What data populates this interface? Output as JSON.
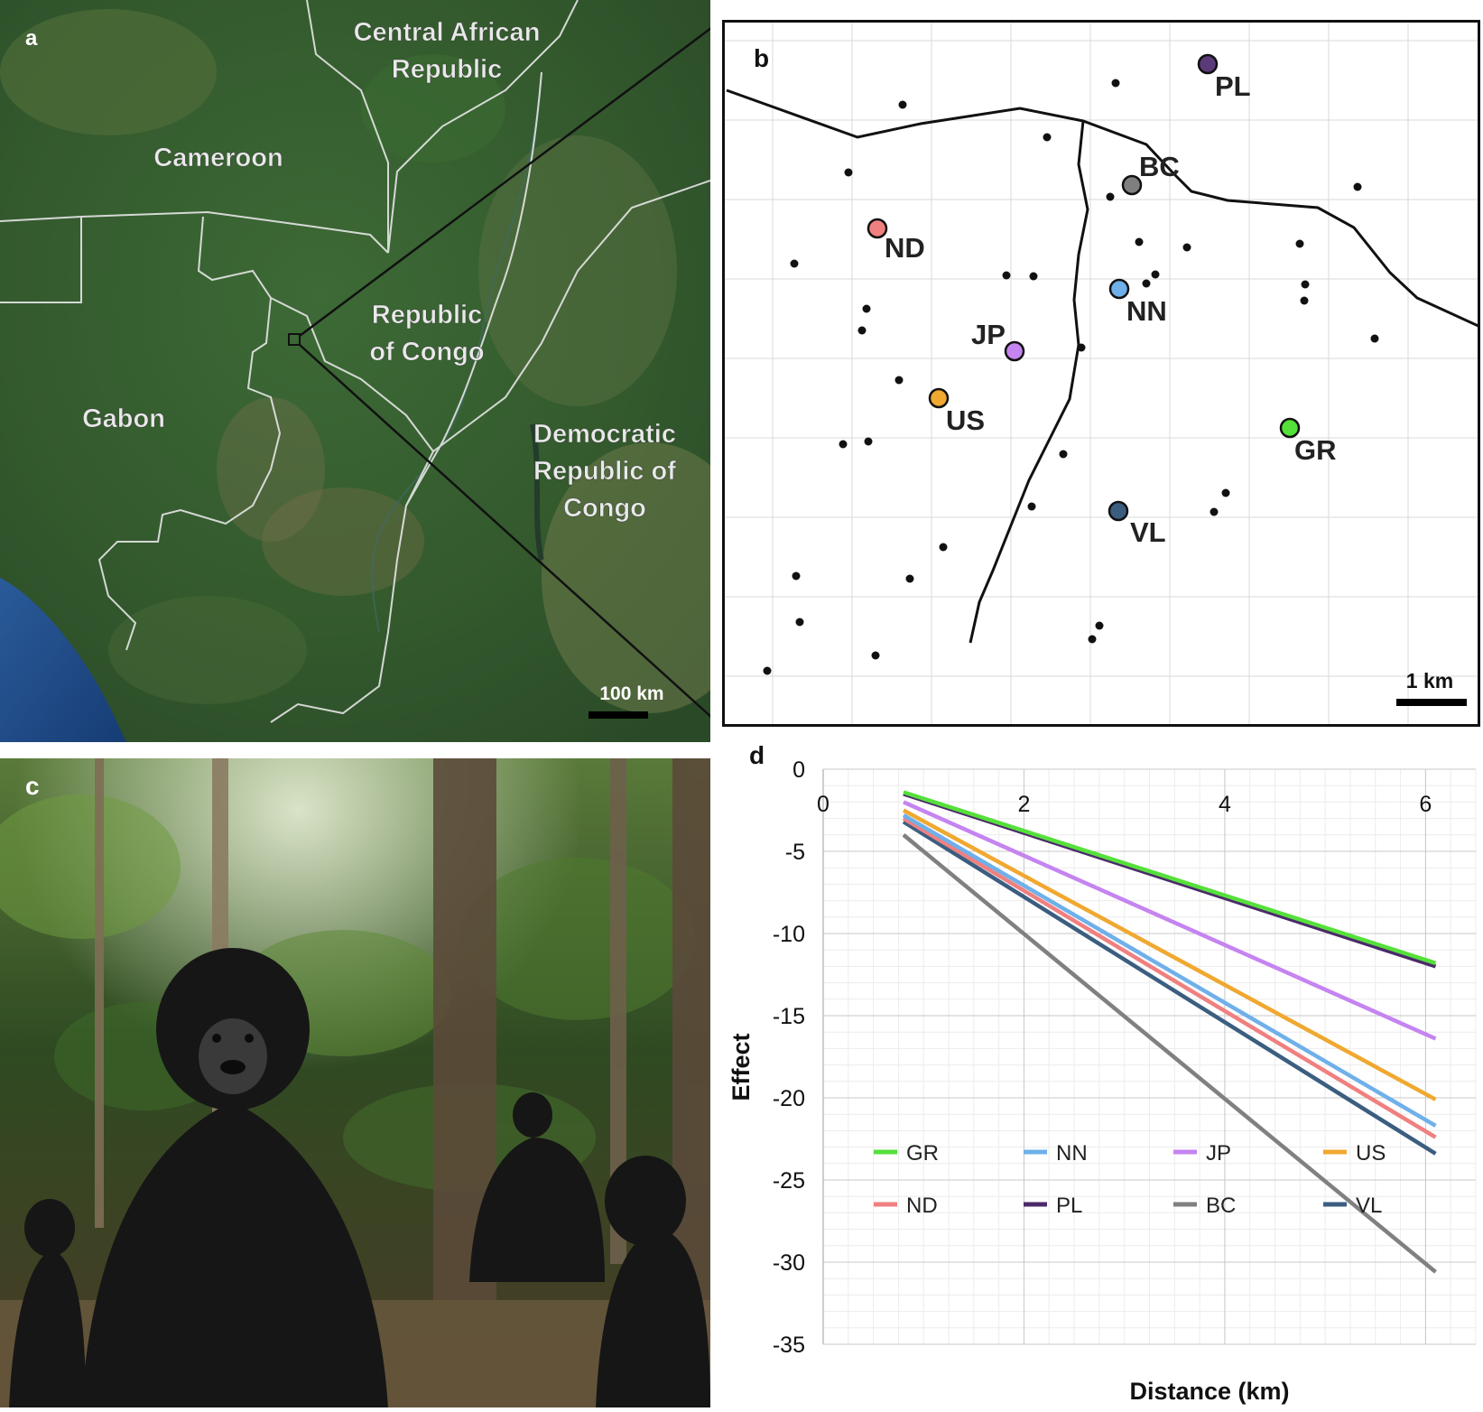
{
  "panel_a": {
    "letter": "a",
    "countries": {
      "car_line1": "Central African",
      "car_line2": "Republic",
      "cameroon": "Cameroon",
      "congo_line1": "Republic",
      "congo_line2": "of Congo",
      "gabon": "Gabon",
      "drc_line1": "Democratic",
      "drc_line2": "Republic of",
      "drc_line3": "Congo"
    },
    "scale_label": "100 km"
  },
  "panel_b": {
    "letter": "b",
    "scale_label": "1 km",
    "groups": [
      {
        "id": "PL",
        "label": "PL",
        "color": "#5b3a7a"
      },
      {
        "id": "BC",
        "label": "BC",
        "color": "#7f7f7f"
      },
      {
        "id": "ND",
        "label": "ND",
        "color": "#f08080"
      },
      {
        "id": "NN",
        "label": "NN",
        "color": "#6fb0ea"
      },
      {
        "id": "JP",
        "label": "JP",
        "color": "#c584f0"
      },
      {
        "id": "US",
        "label": "US",
        "color": "#f0a830"
      },
      {
        "id": "GR",
        "label": "GR",
        "color": "#55e03a"
      },
      {
        "id": "VL",
        "label": "VL",
        "color": "#3b5e80"
      }
    ]
  },
  "panel_c": {
    "letter": "c"
  },
  "panel_d": {
    "letter": "d"
  },
  "chart_data": {
    "type": "line",
    "title": "",
    "xlabel": "Distance (km)",
    "ylabel": "Effect",
    "xlim": [
      0,
      6.5
    ],
    "ylim": [
      -35,
      0
    ],
    "xticks": [
      "0",
      "2",
      "4",
      "6"
    ],
    "yticks": [
      "0",
      "-5",
      "-10",
      "-15",
      "-20",
      "-25",
      "-30",
      "-35"
    ],
    "legend_position": "bottom-center",
    "series": [
      {
        "name": "GR",
        "color": "#55e03a",
        "x": [
          0.8,
          6.1
        ],
        "y": [
          -1.4,
          -11.8
        ]
      },
      {
        "name": "NN",
        "color": "#6fb0ea",
        "x": [
          0.8,
          6.1
        ],
        "y": [
          -2.8,
          -21.7
        ]
      },
      {
        "name": "JP",
        "color": "#c584f0",
        "x": [
          0.8,
          6.1
        ],
        "y": [
          -2.0,
          -16.4
        ]
      },
      {
        "name": "US",
        "color": "#f0a830",
        "x": [
          0.8,
          6.1
        ],
        "y": [
          -2.5,
          -20.1
        ]
      },
      {
        "name": "ND",
        "color": "#f08080",
        "x": [
          0.8,
          6.1
        ],
        "y": [
          -3.0,
          -22.4
        ]
      },
      {
        "name": "PL",
        "color": "#4b2a6a",
        "x": [
          0.8,
          6.1
        ],
        "y": [
          -1.5,
          -12.0
        ]
      },
      {
        "name": "BC",
        "color": "#808080",
        "x": [
          0.8,
          6.1
        ],
        "y": [
          -4.0,
          -30.6
        ]
      },
      {
        "name": "VL",
        "color": "#3b5e80",
        "x": [
          0.8,
          6.1
        ],
        "y": [
          -3.2,
          -23.4
        ]
      }
    ]
  }
}
